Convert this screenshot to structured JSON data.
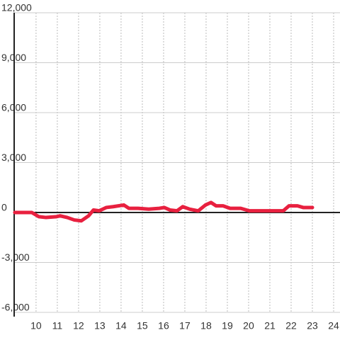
{
  "chart_data": {
    "type": "line",
    "x": [
      9.0,
      9.8,
      10.13,
      10.47,
      10.97,
      11.13,
      11.47,
      11.8,
      12.13,
      12.47,
      12.7,
      12.97,
      13.3,
      13.63,
      14.13,
      14.37,
      14.8,
      15.3,
      15.8,
      16.03,
      16.3,
      16.63,
      16.9,
      17.23,
      17.63,
      17.97,
      18.23,
      18.47,
      18.8,
      19.13,
      19.63,
      20.03,
      20.63,
      21.63,
      21.9,
      22.3,
      22.57,
      23.0
    ],
    "series": [
      {
        "color": "#e8203f",
        "values": [
          0,
          0,
          -250,
          -300,
          -250,
          -200,
          -300,
          -450,
          -500,
          -200,
          150,
          100,
          300,
          350,
          450,
          250,
          250,
          200,
          250,
          300,
          150,
          100,
          350,
          200,
          100,
          450,
          600,
          400,
          400,
          250,
          250,
          100,
          100,
          100,
          400,
          400,
          300,
          300
        ]
      }
    ],
    "xlim": [
      8.97,
      24.3
    ],
    "xticks": [
      10,
      11,
      12,
      13,
      14,
      15,
      16,
      17,
      18,
      19,
      20,
      21,
      22,
      23,
      24
    ],
    "ylim": [
      -6000,
      12000
    ],
    "yticks": [
      {
        "value": -6000,
        "label": "-6,000"
      },
      {
        "value": -3000,
        "label": "-3,000"
      },
      0,
      {
        "value": 3000,
        "label": "3,000"
      },
      {
        "value": 6000,
        "label": "6,000"
      },
      {
        "value": 9000,
        "label": "9,000"
      },
      {
        "value": 12000,
        "label": "12,000"
      }
    ],
    "grid": true
  }
}
